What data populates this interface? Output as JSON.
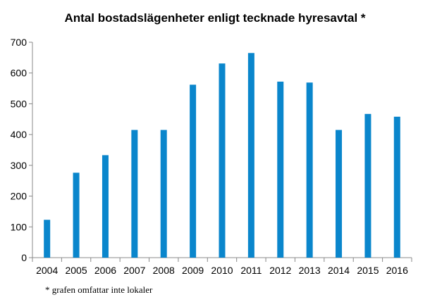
{
  "chart_data": {
    "type": "bar",
    "title": "Antal bostadslägenheter enligt tecknade hyresavtal *",
    "footnote": "* grafen omfattar inte lokaler",
    "categories": [
      "2004",
      "2005",
      "2006",
      "2007",
      "2008",
      "2009",
      "2010",
      "2011",
      "2012",
      "2013",
      "2014",
      "2015",
      "2016"
    ],
    "values": [
      123,
      276,
      333,
      415,
      415,
      562,
      631,
      665,
      572,
      569,
      415,
      467,
      458
    ],
    "ylim": [
      0,
      700
    ],
    "yticks": [
      0,
      100,
      200,
      300,
      400,
      500,
      600,
      700
    ],
    "grid": false,
    "legend": "none",
    "bar_color": "#0a86cc"
  }
}
